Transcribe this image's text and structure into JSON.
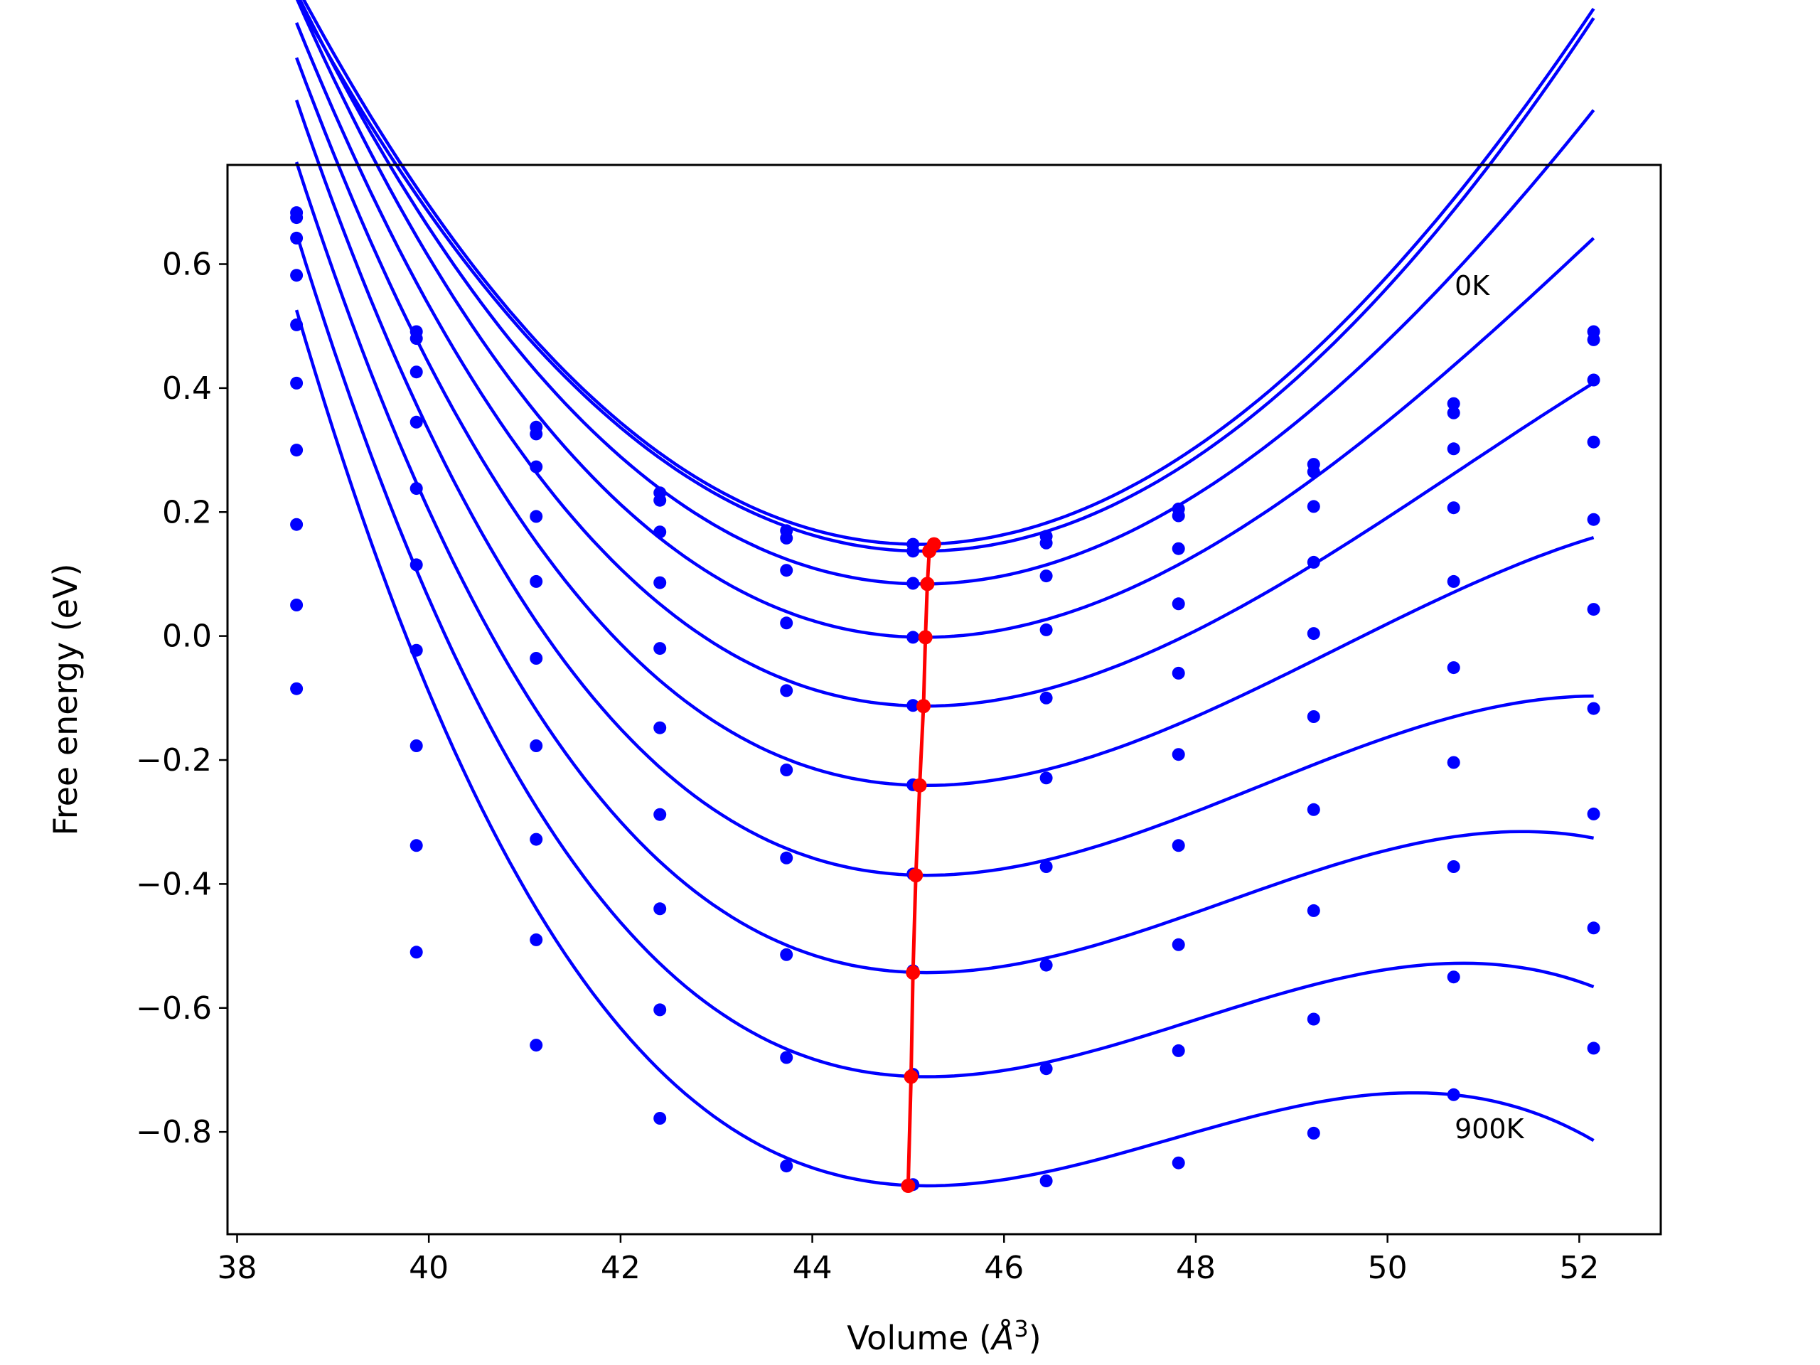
{
  "chart_data": {
    "type": "line",
    "xlabel": "Volume (",
    "xlabel_unit": "Å",
    "xlabel_exp": "3",
    "xlabel_close": ")",
    "ylabel": "Free energy (eV)",
    "xlim": [
      37.9,
      52.85
    ],
    "ylim": [
      -0.965,
      0.76
    ],
    "xticks": [
      38,
      40,
      42,
      44,
      46,
      48,
      50,
      52
    ],
    "xtick_labels": [
      "38",
      "40",
      "42",
      "44",
      "46",
      "48",
      "50",
      "52"
    ],
    "yticks": [
      0.6,
      0.4,
      0.2,
      0.0,
      -0.2,
      -0.4,
      -0.6,
      -0.8
    ],
    "ytick_labels": [
      "0.6",
      "0.4",
      "0.2",
      "0.0",
      "−0.2",
      "−0.4",
      "−0.6",
      "−0.8"
    ],
    "grid": false,
    "annotations": [
      {
        "text": "0K",
        "x": 50.7,
        "y": 0.55
      },
      {
        "text": "900K",
        "x": 50.7,
        "y": -0.81
      }
    ],
    "colors": {
      "series": "#0000ff",
      "minimum": "#ff0000"
    },
    "volumes": [
      38.62,
      39.87,
      41.12,
      42.41,
      43.73,
      45.05,
      46.44,
      47.82,
      49.23,
      50.69,
      52.15
    ],
    "series": [
      {
        "points": [
          0.683,
          0.491,
          0.337,
          0.231,
          0.17,
          0.148,
          0.161,
          0.205,
          0.277,
          0.375,
          0.491
        ],
        "fit": {
          "vmin": 45.1,
          "emin": 0.148,
          "a": 0.0195,
          "b": -0.0003
        }
      },
      {
        "points": [
          0.675,
          0.48,
          0.326,
          0.219,
          0.158,
          0.137,
          0.15,
          0.194,
          0.265,
          0.36,
          0.478
        ],
        "fit": {
          "vmin": 45.15,
          "emin": 0.137,
          "a": 0.0193,
          "b": -0.00025
        }
      },
      {
        "points": [
          0.642,
          0.426,
          0.273,
          0.168,
          0.106,
          0.085,
          0.097,
          0.141,
          0.209,
          0.302,
          0.413
        ],
        "fit": {
          "vmin": 45.15,
          "emin": 0.084,
          "a": 0.0191,
          "b": -0.0005
        }
      },
      {
        "points": [
          0.582,
          0.345,
          0.193,
          0.086,
          0.021,
          -0.002,
          0.01,
          0.052,
          0.119,
          0.207,
          0.313
        ],
        "fit": {
          "vmin": 45.17,
          "emin": -0.002,
          "a": 0.0188,
          "b": -0.0008
        }
      },
      {
        "points": [
          0.502,
          0.238,
          0.088,
          -0.02,
          -0.088,
          -0.112,
          -0.1,
          -0.06,
          0.004,
          0.088,
          0.188
        ],
        "fit": {
          "vmin": 45.18,
          "emin": -0.113,
          "a": 0.0184,
          "b": -0.0011
        }
      },
      {
        "points": [
          0.408,
          0.115,
          -0.036,
          -0.148,
          -0.216,
          -0.24,
          -0.229,
          -0.191,
          -0.13,
          -0.051,
          0.043
        ],
        "fit": {
          "vmin": 45.19,
          "emin": -0.241,
          "a": 0.018,
          "b": -0.0014
        }
      },
      {
        "points": [
          0.3,
          -0.023,
          -0.177,
          -0.288,
          -0.358,
          -0.384,
          -0.372,
          -0.338,
          -0.28,
          -0.204,
          -0.117
        ],
        "fit": {
          "vmin": 45.19,
          "emin": -0.386,
          "a": 0.0178,
          "b": -0.0017
        }
      },
      {
        "points": [
          0.18,
          -0.177,
          -0.328,
          -0.44,
          -0.514,
          -0.54,
          -0.531,
          -0.498,
          -0.443,
          -0.372,
          -0.287
        ],
        "fit": {
          "vmin": 45.2,
          "emin": -0.543,
          "a": 0.0177,
          "b": -0.0019
        }
      },
      {
        "points": [
          0.05,
          -0.338,
          -0.49,
          -0.603,
          -0.68,
          -0.707,
          -0.698,
          -0.669,
          -0.618,
          -0.55,
          -0.471
        ],
        "fit": {
          "vmin": 45.2,
          "emin": -0.711,
          "a": 0.0176,
          "b": -0.0021
        }
      },
      {
        "points": [
          -0.085,
          -0.51,
          -0.66,
          -0.778,
          -0.855,
          -0.885,
          -0.879,
          -0.85,
          -0.802,
          -0.74,
          -0.665
        ],
        "fit": {
          "vmin": 45.2,
          "emin": -0.887,
          "a": 0.0175,
          "b": -0.0023
        }
      }
    ],
    "minimum_line": {
      "x": [
        45.27,
        45.22,
        45.2,
        45.18,
        45.16,
        45.12,
        45.08,
        45.05,
        45.03,
        45.0
      ],
      "y": [
        0.148,
        0.137,
        0.084,
        -0.002,
        -0.113,
        -0.241,
        -0.386,
        -0.543,
        -0.711,
        -0.887
      ]
    }
  }
}
